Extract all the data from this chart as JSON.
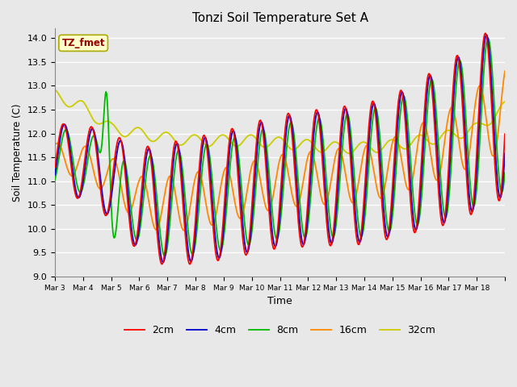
{
  "title": "Tonzi Soil Temperature Set A",
  "xlabel": "Time",
  "ylabel": "Soil Temperature (C)",
  "ylim": [
    9.0,
    14.2
  ],
  "annotation_text": "TZ_fmet",
  "annotation_bbox_facecolor": "#FFFFCC",
  "annotation_bbox_edgecolor": "#AAAA00",
  "annotation_text_color": "#990000",
  "line_colors": {
    "2cm": "#FF0000",
    "4cm": "#0000CC",
    "8cm": "#00BB00",
    "16cm": "#FF8800",
    "32cm": "#CCCC00"
  },
  "background_color": "#E8E8E8",
  "plot_bg_color": "#E8E8E8",
  "tick_labels": [
    "Mar 3",
    "Mar 4",
    "Mar 5",
    "Mar 6",
    "Mar 7",
    "Mar 8",
    "Mar 9",
    "Mar 10",
    "Mar 11",
    "Mar 12",
    "Mar 13",
    "Mar 14",
    "Mar 15",
    "Mar 16",
    "Mar 17",
    "Mar 18"
  ],
  "legend_labels": [
    "2cm",
    "4cm",
    "8cm",
    "16cm",
    "32cm"
  ]
}
